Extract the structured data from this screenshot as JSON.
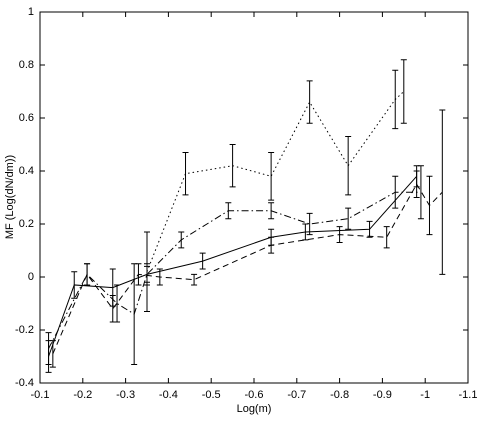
{
  "chart_data": {
    "type": "line",
    "xlabel": "Log(m)",
    "ylabel": "MF (Log(dN/dm))",
    "xlim": [
      -0.1,
      -1.1
    ],
    "xticks": [
      -0.1,
      -0.2,
      -0.3,
      -0.4,
      -0.5,
      -0.6,
      -0.7,
      -0.8,
      -0.9,
      -1,
      -1.1
    ],
    "ylim": [
      -0.4,
      1
    ],
    "yticks": [
      -0.4,
      -0.2,
      0,
      0.2,
      0.4,
      0.6,
      0.8,
      1
    ],
    "series": [
      {
        "color": "#000000",
        "dash": "none",
        "x": [
          -0.12,
          -0.18,
          -0.27,
          -0.35,
          -0.48,
          -0.64,
          -0.72,
          -0.87,
          -0.98
        ],
        "values": [
          -0.3,
          -0.03,
          -0.04,
          0.01,
          0.06,
          0.15,
          0.17,
          0.18,
          0.38
        ],
        "errors": [
          0.06,
          0.05,
          0.07,
          0.04,
          0.03,
          0.03,
          0.03,
          0.03,
          0.04
        ]
      },
      {
        "color": "#000000",
        "dash": "6,4",
        "x": [
          -0.13,
          -0.21,
          -0.27,
          -0.33,
          -0.38,
          -0.46,
          -0.64,
          -0.8,
          -0.91,
          -0.98,
          -1.01,
          -1.04
        ],
        "values": [
          -0.29,
          0.01,
          -0.12,
          0.01,
          0.0,
          -0.01,
          0.12,
          0.16,
          0.15,
          0.35,
          0.27,
          0.32
        ],
        "errors": [
          0.05,
          0.04,
          0.05,
          0.04,
          0.03,
          0.02,
          0.03,
          0.03,
          0.04,
          0.05,
          0.11,
          0.31
        ]
      },
      {
        "color": "#000000",
        "dash": "7,3,1.5,3",
        "x": [
          -0.12,
          -0.21,
          -0.28,
          -0.32,
          -0.35,
          -0.43,
          -0.54,
          -0.64,
          -0.73,
          -0.82,
          -0.93,
          -0.99
        ],
        "values": [
          -0.27,
          0.01,
          -0.1,
          -0.14,
          0.01,
          0.14,
          0.25,
          0.25,
          0.2,
          0.22,
          0.32,
          0.32
        ],
        "errors": [
          0.06,
          0.04,
          0.07,
          0.19,
          0.03,
          0.03,
          0.03,
          0.03,
          0.04,
          0.04,
          0.06,
          0.1
        ]
      },
      {
        "color": "#000000",
        "dash": "1.5,3",
        "x": [
          -0.35,
          -0.44,
          -0.55,
          -0.64,
          -0.73,
          -0.82,
          -0.93,
          -0.95
        ],
        "values": [
          0.02,
          0.39,
          0.42,
          0.38,
          0.66,
          0.42,
          0.67,
          0.7
        ],
        "errors": [
          0.15,
          0.08,
          0.08,
          0.09,
          0.08,
          0.11,
          0.11,
          0.12
        ]
      }
    ]
  }
}
